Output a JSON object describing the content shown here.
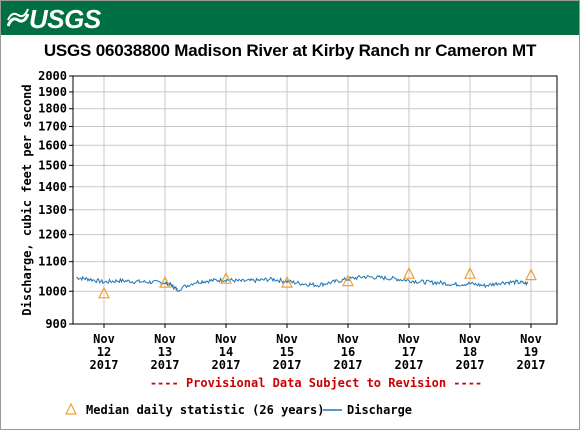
{
  "header": {
    "logo_text": "USGS"
  },
  "chart_data": {
    "type": "line",
    "title": "USGS 06038800 Madison River at Kirby Ranch nr Cameron MT",
    "ylabel": "Discharge, cubic feet per second",
    "xlabel": "",
    "y_scale": "log",
    "ylim": [
      900,
      2000
    ],
    "yticks": [
      900,
      1000,
      1100,
      1200,
      1300,
      1400,
      1500,
      1600,
      1700,
      1800,
      1900,
      2000
    ],
    "x_range_days": [
      0,
      7.75
    ],
    "xticks": [
      {
        "line1": "Nov",
        "line2": "12",
        "line3": "2017",
        "day": 0
      },
      {
        "line1": "Nov",
        "line2": "13",
        "line3": "2017",
        "day": 1
      },
      {
        "line1": "Nov",
        "line2": "14",
        "line3": "2017",
        "day": 2
      },
      {
        "line1": "Nov",
        "line2": "15",
        "line3": "2017",
        "day": 3
      },
      {
        "line1": "Nov",
        "line2": "16",
        "line3": "2017",
        "day": 4
      },
      {
        "line1": "Nov",
        "line2": "17",
        "line3": "2017",
        "day": 5
      },
      {
        "line1": "Nov",
        "line2": "18",
        "line3": "2017",
        "day": 6
      },
      {
        "line1": "Nov",
        "line2": "19",
        "line3": "2017",
        "day": 7
      }
    ],
    "grid": true,
    "provisional_note": "---- Provisional Data Subject to Revision ----",
    "series": [
      {
        "name": "Discharge",
        "color": "#1f77b4",
        "x": [
          -0.45,
          -0.25,
          0,
          0.25,
          0.5,
          0.75,
          1.0,
          1.1,
          1.2,
          1.5,
          1.75,
          2.0,
          2.25,
          2.5,
          2.75,
          3.0,
          3.25,
          3.5,
          3.75,
          4.0,
          4.25,
          4.5,
          4.75,
          5.0,
          5.25,
          5.5,
          5.75,
          6.0,
          6.25,
          6.5,
          6.75,
          6.95
        ],
        "values": [
          1045,
          1040,
          1030,
          1035,
          1032,
          1030,
          1028,
          1020,
          1005,
          1030,
          1035,
          1038,
          1033,
          1035,
          1040,
          1032,
          1025,
          1020,
          1030,
          1040,
          1048,
          1045,
          1042,
          1035,
          1030,
          1028,
          1022,
          1025,
          1018,
          1028,
          1030,
          1025
        ]
      },
      {
        "name": "Median daily statistic (26 years)",
        "color": "#f0a030",
        "marker": "triangle",
        "x": [
          0,
          1,
          2,
          3,
          4,
          5,
          6,
          7
        ],
        "values": [
          995,
          1030,
          1043,
          1030,
          1035,
          1060,
          1060,
          1055
        ]
      }
    ],
    "legend": {
      "placement": "bottom",
      "items": [
        {
          "label": "Median daily statistic (26 years)",
          "symbol": "triangle"
        },
        {
          "label": "Discharge",
          "symbol": "line"
        }
      ]
    },
    "colors": {
      "banner": "#006f41",
      "discharge": "#1f77b4",
      "median": "#f0a030",
      "note": "#cc0000"
    }
  }
}
